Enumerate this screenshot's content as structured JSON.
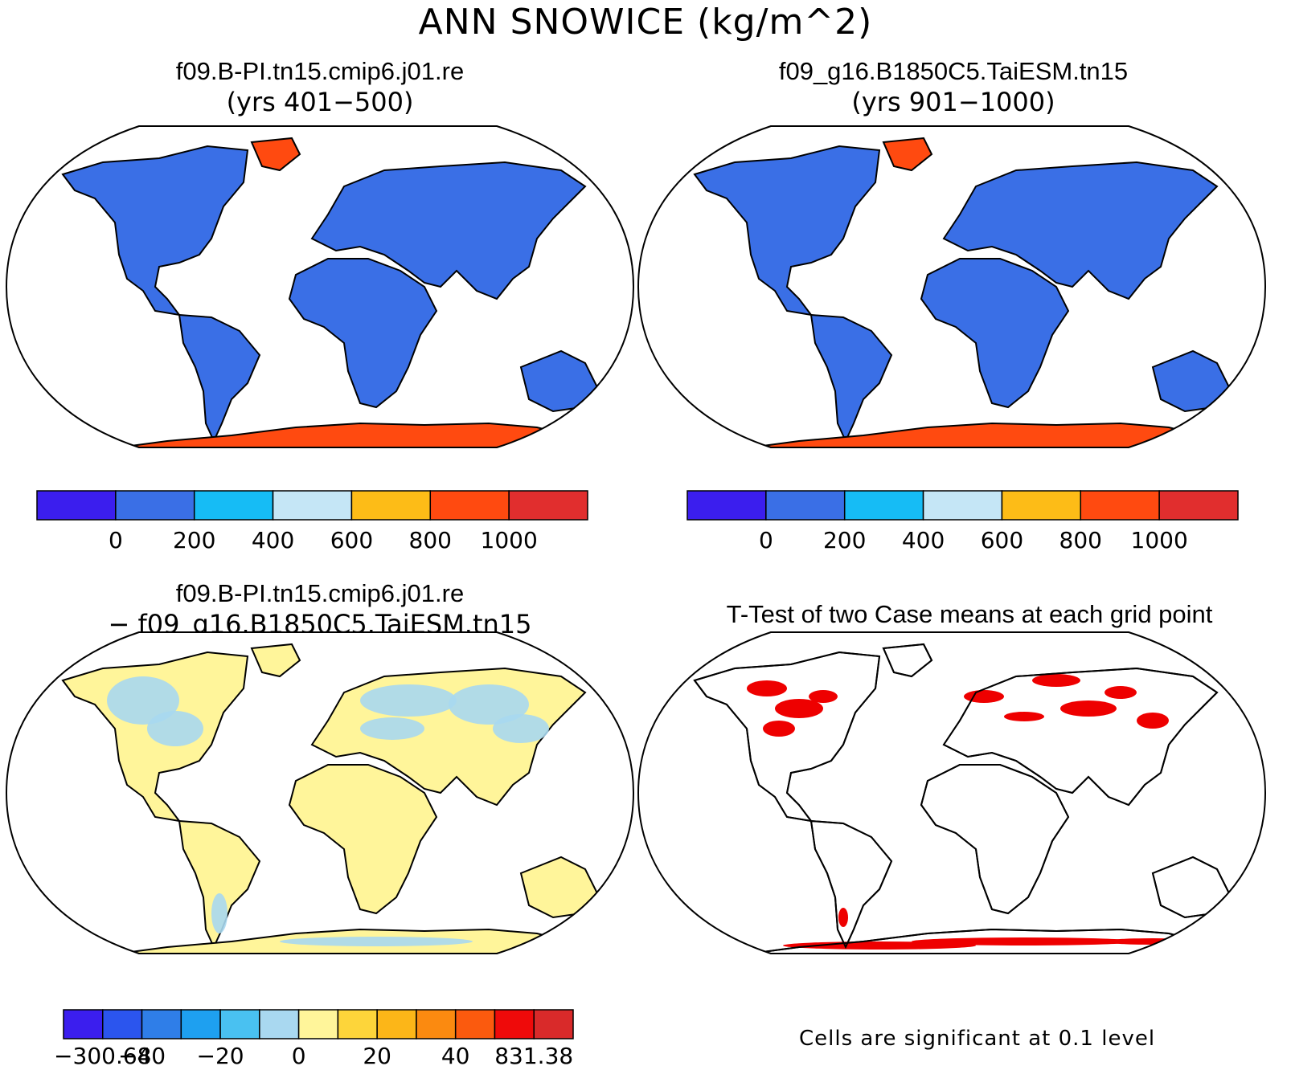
{
  "figure": {
    "title": "ANN SNOWICE (kg/m^2)",
    "note": "Cells are significant at 0.1 level"
  },
  "colors": {
    "land_outline": "#000000",
    "significant": "#ee0000",
    "ocean": "#ffffff"
  },
  "chart_data": [
    {
      "type": "heatmap",
      "id": "case1",
      "title": "f09.B-PI.tn15.cmip6.j01.re",
      "subtitle": "(yrs 401−500)",
      "dominant_fill": "#3a6fe6",
      "polar_fill": "#ff4a10",
      "colorbar": {
        "colors": [
          "#3b1eee",
          "#3a6fe6",
          "#16bcf5",
          "#c5e6f6",
          "#fdbc17",
          "#ff4a10",
          "#e12e2e"
        ],
        "ticks": [
          "0",
          "200",
          "400",
          "600",
          "800",
          "1000"
        ]
      }
    },
    {
      "type": "heatmap",
      "id": "case2",
      "title": "f09_g16.B1850C5.TaiESM.tn15",
      "subtitle": "(yrs 901−1000)",
      "dominant_fill": "#3a6fe6",
      "polar_fill": "#ff4a10",
      "colorbar": {
        "colors": [
          "#3b1eee",
          "#3a6fe6",
          "#16bcf5",
          "#c5e6f6",
          "#fdbc17",
          "#ff4a10",
          "#e12e2e"
        ],
        "ticks": [
          "0",
          "200",
          "400",
          "600",
          "800",
          "1000"
        ]
      }
    },
    {
      "type": "heatmap",
      "id": "difference",
      "title": "f09.B-PI.tn15.cmip6.j01.re",
      "subtitle": "− f09_g16.B1850C5.TaiESM.tn15",
      "dominant_fill": "#fff59a",
      "polar_fill": "#fff59a",
      "secondary_fill": "#a9d8f0",
      "colorbar": {
        "colors": [
          "#3b1eee",
          "#2b55ee",
          "#2f7ee8",
          "#1ea0f0",
          "#49c1f1",
          "#a9d8f0",
          "#fff59a",
          "#fdd53a",
          "#fcb618",
          "#fb8a10",
          "#fb5a0e",
          "#ef0a0a",
          "#d92a2a"
        ],
        "ticks": [
          "−300.68",
          "−40",
          "−20",
          "0",
          "20",
          "40",
          "831.38"
        ]
      }
    },
    {
      "type": "heatmap",
      "id": "ttest",
      "title": "T-Test of two Case means at each grid point",
      "significance_level": 0.1
    }
  ]
}
